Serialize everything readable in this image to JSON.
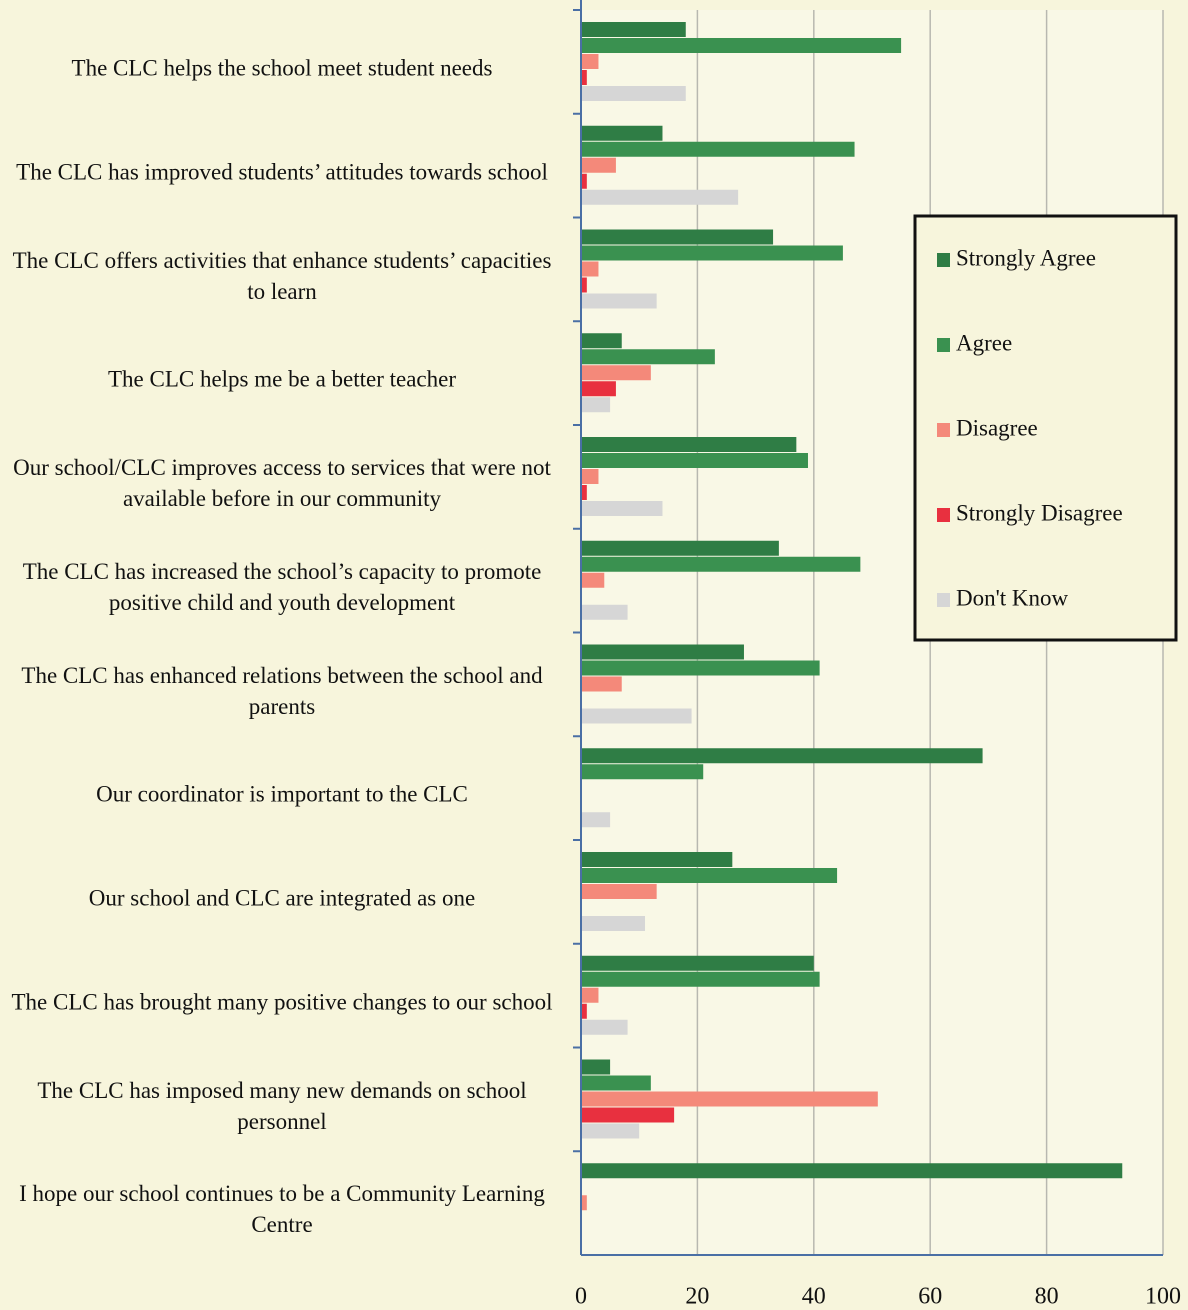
{
  "chart_data": {
    "type": "barh",
    "categories": [
      "The CLC helps the school meet student needs",
      "The CLC has improved students’ attitudes towards school",
      "The CLC offers activities that enhance students’ capacities to learn",
      "The CLC helps me be a better teacher",
      "Our school/CLC improves access to services that were not available before in our community",
      "The CLC has increased the school’s capacity to promote positive child and youth development",
      "The CLC has enhanced relations between the school and parents",
      "Our coordinator is important to the CLC",
      "Our school and CLC are integrated as one",
      "The CLC has brought many positive changes to our school",
      "The CLC has imposed many new demands on school personnel",
      "I hope our school continues to be a Community Learning Centre"
    ],
    "series": [
      {
        "name": "Strongly Agree",
        "color": "#2f7d45",
        "values": [
          18,
          14,
          33,
          7,
          37,
          34,
          28,
          69,
          26,
          40,
          5,
          93
        ]
      },
      {
        "name": "Agree",
        "color": "#3a9150",
        "values": [
          55,
          47,
          45,
          23,
          39,
          48,
          41,
          21,
          44,
          41,
          12,
          0
        ]
      },
      {
        "name": "Disagree",
        "color": "#f4897a",
        "values": [
          3,
          6,
          3,
          12,
          3,
          4,
          7,
          0,
          13,
          3,
          51,
          1
        ]
      },
      {
        "name": "Strongly Disagree",
        "color": "#e8303f",
        "values": [
          1,
          1,
          1,
          6,
          1,
          0,
          0,
          0,
          0,
          1,
          16,
          0
        ]
      },
      {
        "name": "Don't Know",
        "color": "#d6d6d6",
        "values": [
          18,
          27,
          13,
          5,
          14,
          8,
          19,
          5,
          11,
          8,
          10,
          0
        ]
      }
    ],
    "xlim": [
      0,
      100
    ],
    "xticks": [
      0,
      20,
      40,
      60,
      80,
      100
    ],
    "grid": true
  }
}
